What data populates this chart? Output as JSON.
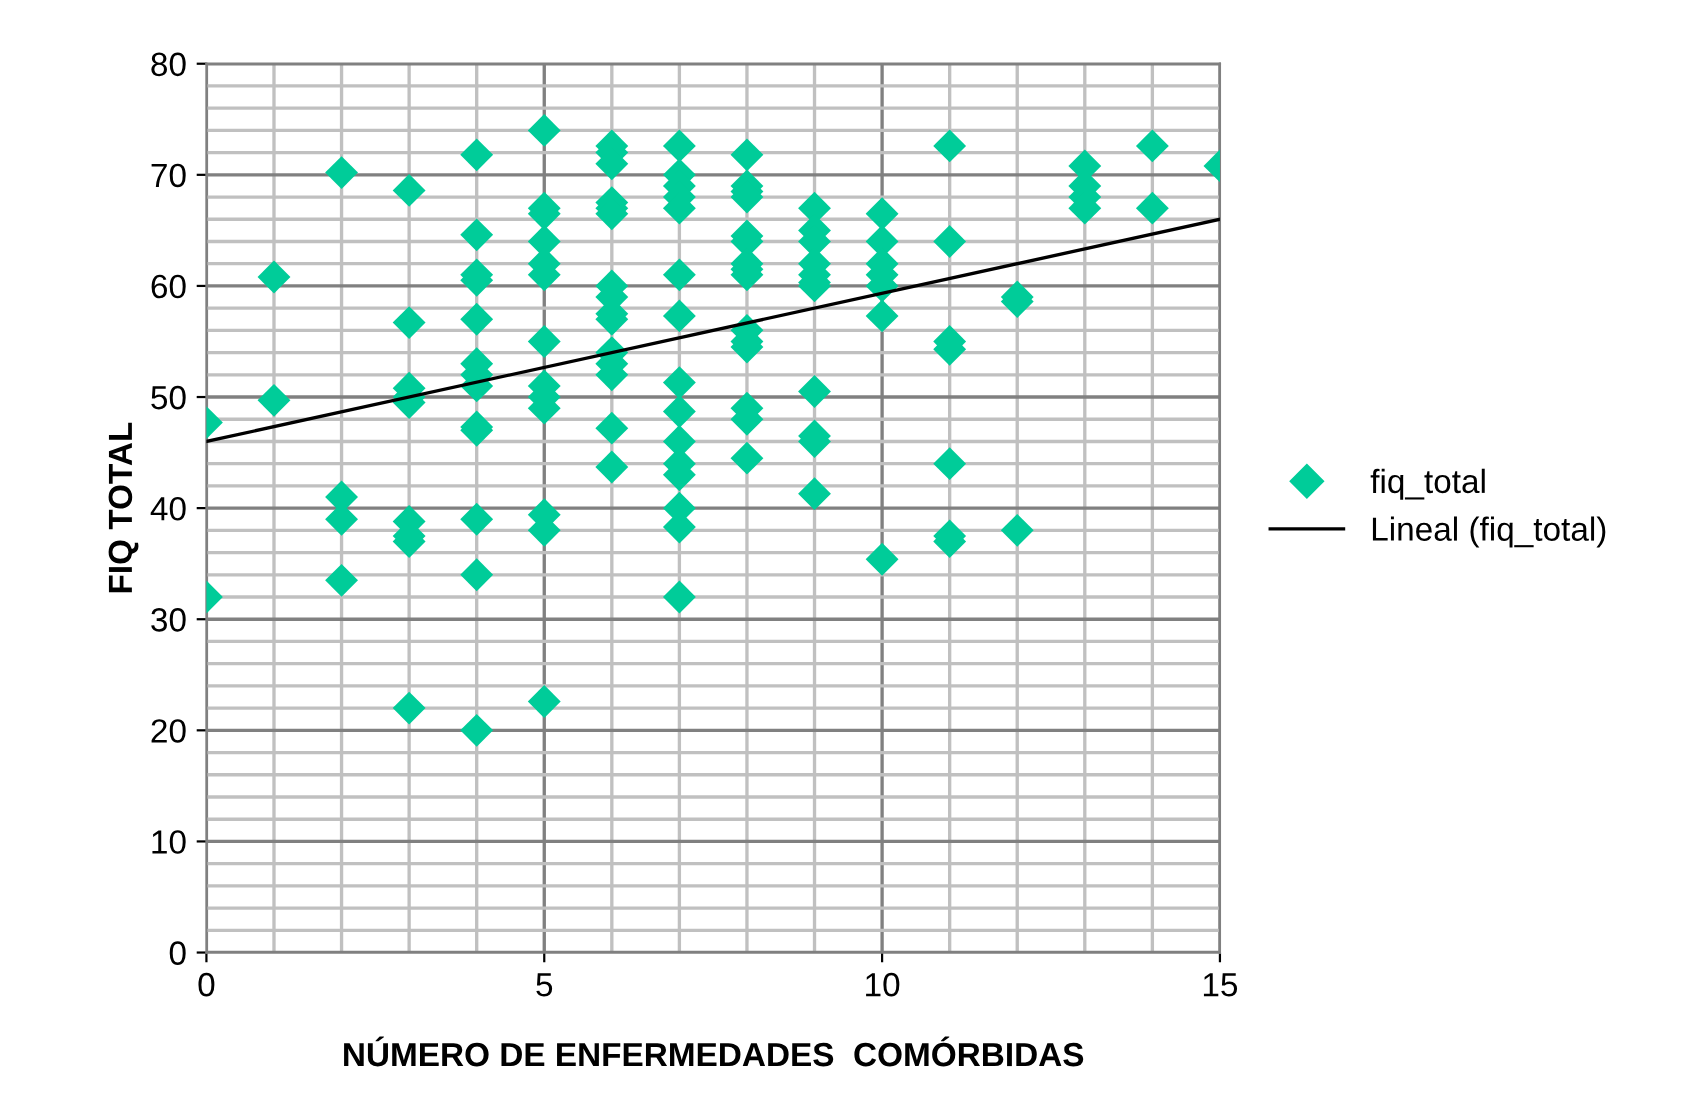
{
  "chart_data": {
    "type": "scatter",
    "xlabel": "NÚMERO DE ENFERMEDADES  COMÓRBIDAS",
    "ylabel": "FIQ TOTAL",
    "xlim": [
      0,
      15
    ],
    "ylim": [
      0,
      80
    ],
    "xticks": [
      0,
      {
        "value": 1,
        "label": null
      },
      {
        "value": 2,
        "label": null
      },
      {
        "value": 3,
        "label": null
      },
      {
        "value": 4,
        "label": null
      },
      5,
      {
        "value": 6,
        "label": null
      },
      {
        "value": 7,
        "label": null
      },
      {
        "value": 8,
        "label": null
      },
      {
        "value": 9,
        "label": null
      },
      10,
      {
        "value": 11,
        "label": null
      },
      {
        "value": 12,
        "label": null
      },
      {
        "value": 13,
        "label": null
      },
      {
        "value": 14,
        "label": null
      },
      15
    ],
    "yticks": [
      0,
      {
        "value": 2,
        "label": null
      },
      {
        "value": 4,
        "label": null
      },
      {
        "value": 6,
        "label": null
      },
      {
        "value": 8,
        "label": null
      },
      10,
      {
        "value": 12,
        "label": null
      },
      {
        "value": 14,
        "label": null
      },
      {
        "value": 16,
        "label": null
      },
      {
        "value": 18,
        "label": null
      },
      20,
      {
        "value": 22,
        "label": null
      },
      {
        "value": 24,
        "label": null
      },
      {
        "value": 26,
        "label": null
      },
      {
        "value": 28,
        "label": null
      },
      30,
      {
        "value": 32,
        "label": null
      },
      {
        "value": 34,
        "label": null
      },
      {
        "value": 36,
        "label": null
      },
      {
        "value": 38,
        "label": null
      },
      40,
      {
        "value": 42,
        "label": null
      },
      {
        "value": 44,
        "label": null
      },
      {
        "value": 46,
        "label": null
      },
      {
        "value": 48,
        "label": null
      },
      50,
      {
        "value": 52,
        "label": null
      },
      {
        "value": 54,
        "label": null
      },
      {
        "value": 56,
        "label": null
      },
      {
        "value": 58,
        "label": null
      },
      60,
      {
        "value": 62,
        "label": null
      },
      {
        "value": 64,
        "label": null
      },
      {
        "value": 66,
        "label": null
      },
      {
        "value": 68,
        "label": null
      },
      70,
      {
        "value": 72,
        "label": null
      },
      {
        "value": 74,
        "label": null
      },
      {
        "value": 76,
        "label": null
      },
      {
        "value": 78,
        "label": null
      },
      80
    ],
    "grid": true,
    "legend": "right",
    "marker": "diamond",
    "series": [
      {
        "name": "fiq_total",
        "color": "#00cc99",
        "x": [
          0,
          0,
          1,
          1,
          2,
          2,
          2,
          2,
          3,
          3,
          3,
          3,
          3,
          3,
          3,
          3,
          3,
          4,
          4,
          4,
          4,
          4,
          4,
          4,
          4,
          4,
          4,
          4,
          4,
          4,
          5,
          5,
          5,
          5,
          5,
          5,
          5,
          5,
          5,
          5,
          5,
          5,
          5,
          6,
          6,
          6,
          6,
          6,
          6,
          6,
          6,
          6,
          6,
          6,
          6,
          6,
          6,
          6,
          7,
          7,
          7,
          7,
          7,
          7,
          7,
          7,
          7,
          7,
          7,
          7,
          7,
          7,
          7,
          8,
          8,
          8,
          8,
          8,
          8,
          8,
          8,
          8,
          8,
          8,
          8,
          8,
          8,
          8,
          9,
          9,
          9,
          9,
          9,
          9,
          9,
          9,
          9,
          9,
          9,
          10,
          10,
          10,
          10,
          10,
          10,
          10,
          11,
          11,
          11,
          11,
          11,
          11,
          11,
          12,
          12,
          12,
          13,
          13,
          13,
          13,
          14,
          14,
          15
        ],
        "values": [
          47.7,
          32,
          60.8,
          49.7,
          70.2,
          41,
          39,
          33.5,
          68.6,
          56.7,
          50.8,
          50,
          49.5,
          38.8,
          37.5,
          37,
          22,
          71.8,
          64.6,
          61,
          60.5,
          57,
          53,
          52,
          51,
          47.3,
          47,
          39,
          34,
          20,
          74,
          67,
          66.5,
          64,
          62,
          61,
          55,
          51,
          50,
          49,
          39.4,
          38,
          22.6,
          72.6,
          72,
          71,
          67.5,
          67,
          66.5,
          60,
          59,
          57.5,
          57,
          54,
          53,
          52,
          47.2,
          43.7,
          72.6,
          70,
          69,
          68,
          67,
          61,
          57.3,
          51.3,
          48.7,
          46,
          44,
          43,
          40,
          38.3,
          32,
          71.8,
          69,
          68.5,
          68,
          64.5,
          64,
          62,
          61.5,
          61,
          56,
          55,
          54.5,
          49,
          48,
          44.5,
          67,
          65,
          64,
          62,
          61,
          60.3,
          60,
          50.5,
          46.5,
          46,
          41.3,
          66.5,
          64,
          62,
          61,
          60,
          57.3,
          35.4,
          72.6,
          64,
          55,
          54.3,
          44,
          37.5,
          37,
          59,
          58.6,
          38,
          70.8,
          69,
          68,
          67,
          72.6,
          67,
          70.8
        ]
      },
      {
        "name": "Lineal (fiq_total)",
        "color": "#000000",
        "type": "line",
        "marker": "none",
        "line_style": "solid",
        "x": [
          0,
          15
        ],
        "values": [
          46,
          66
        ]
      }
    ]
  }
}
